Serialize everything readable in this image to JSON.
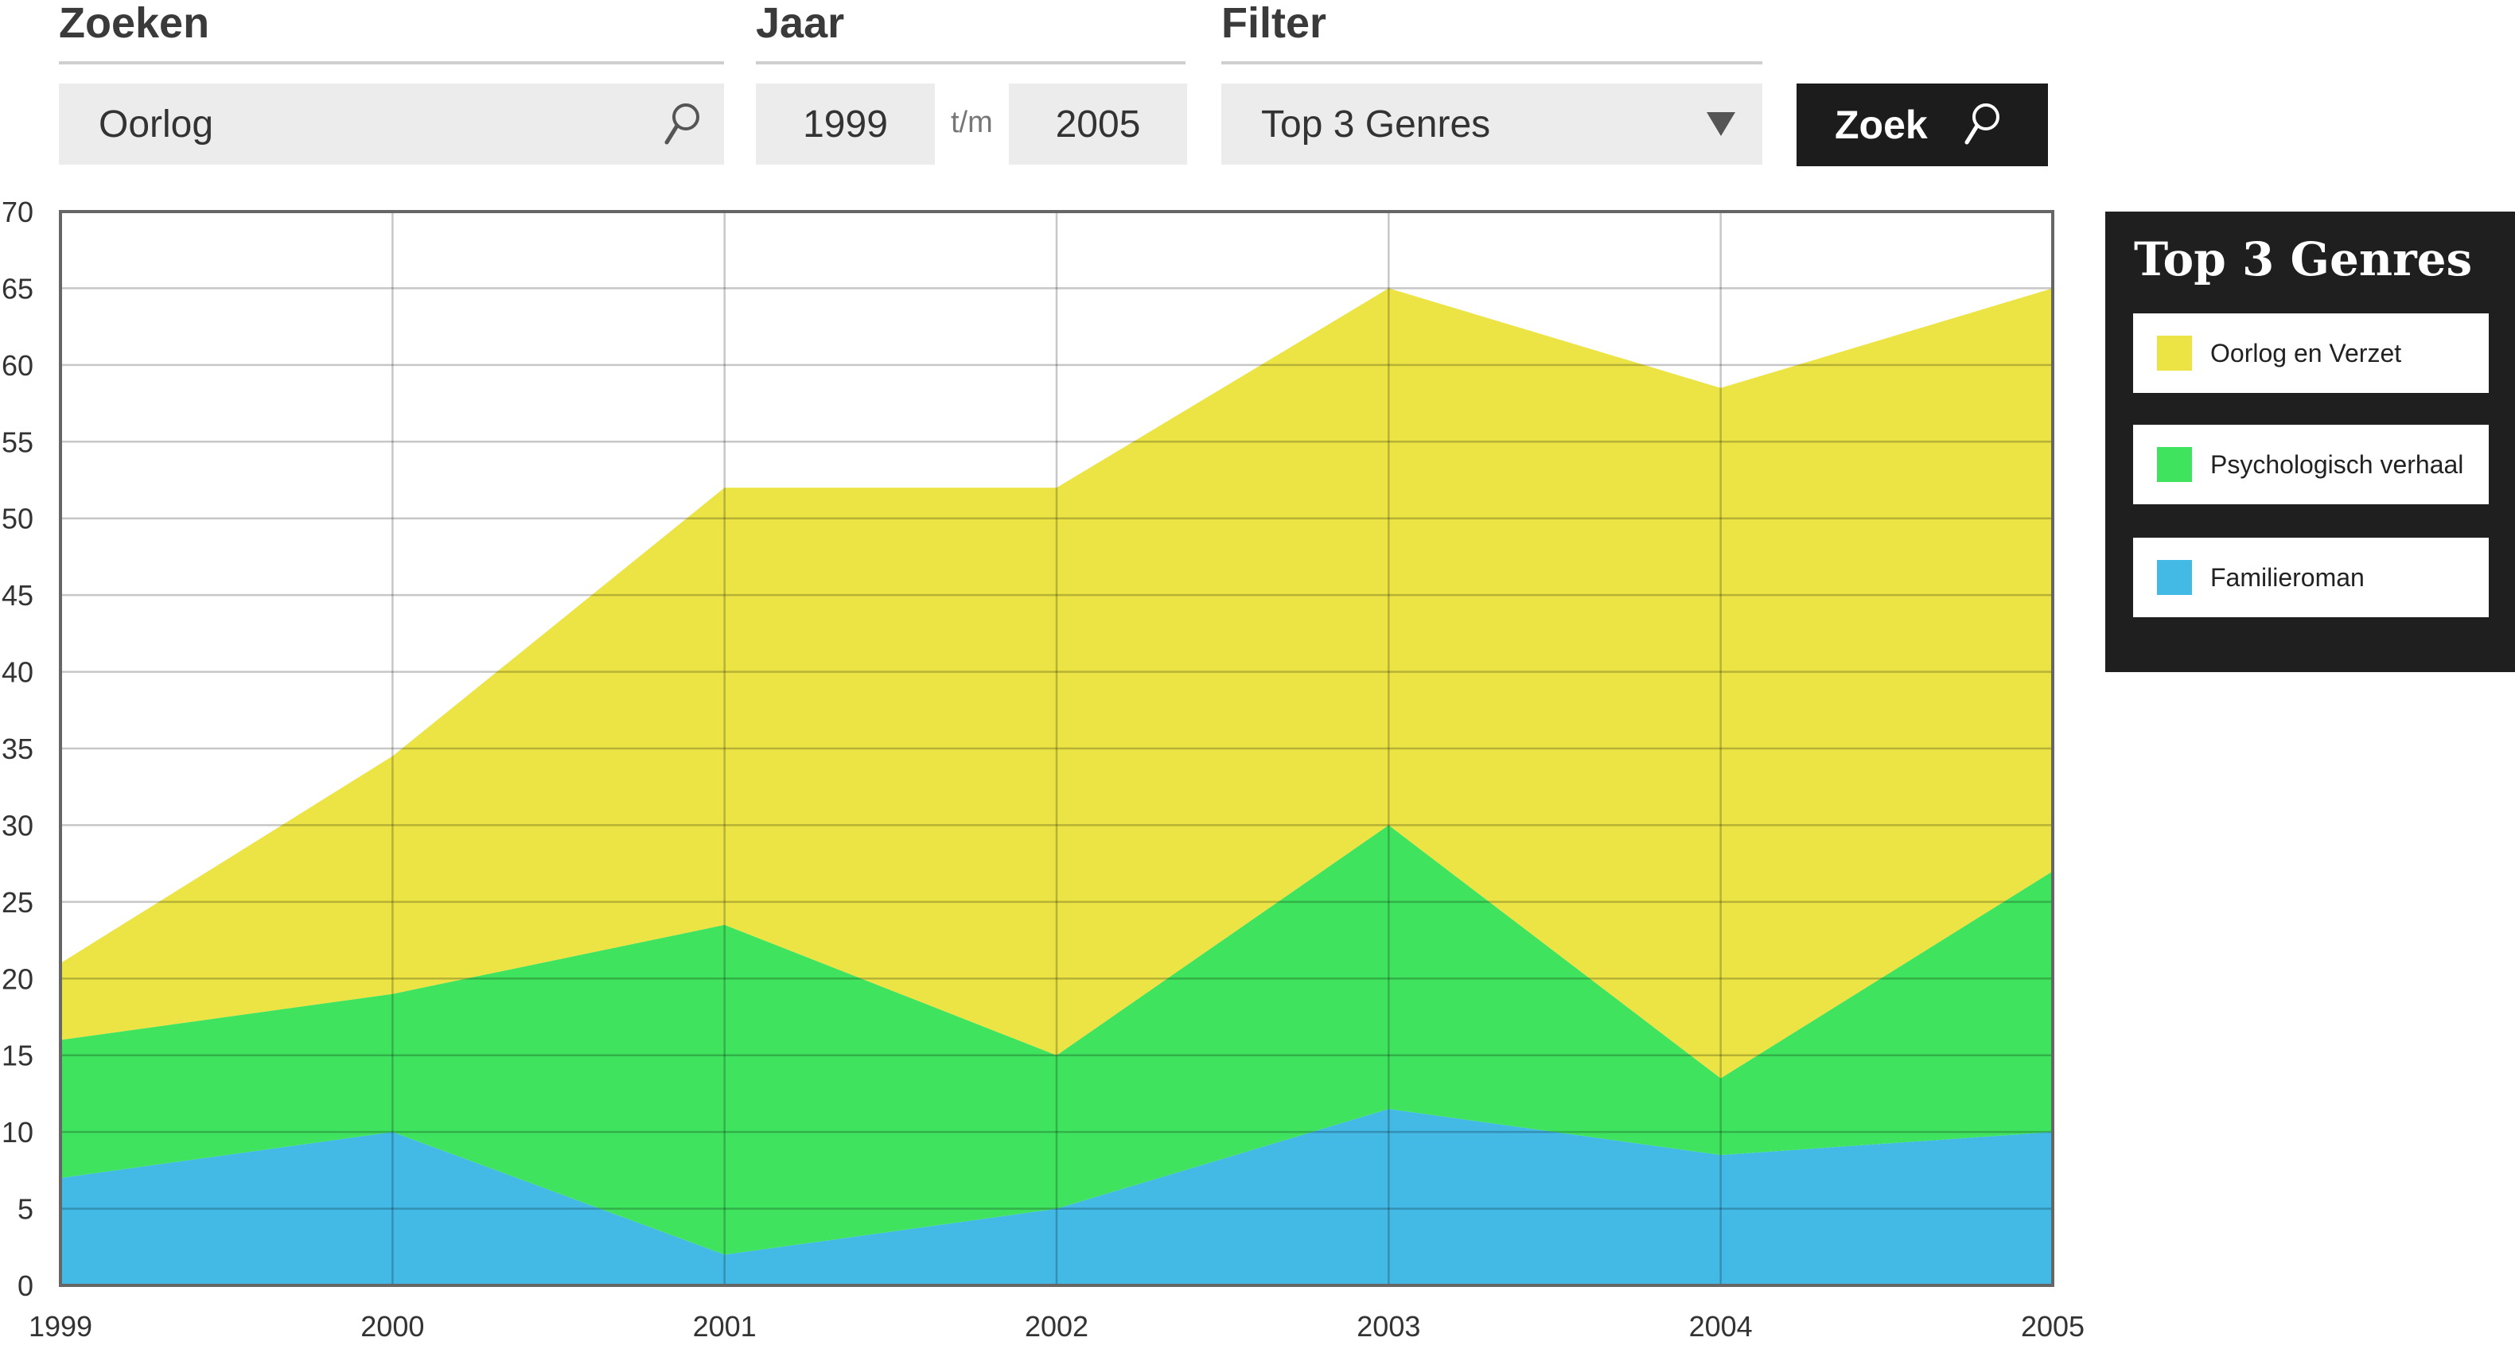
{
  "search": {
    "heading": "Zoeken",
    "value": "Oorlog",
    "icon": "search-icon"
  },
  "year": {
    "heading": "Jaar",
    "from": "1999",
    "separator": "t/m",
    "to": "2005"
  },
  "filter": {
    "heading": "Filter",
    "selected": "Top 3 Genres",
    "icon": "dropdown-triangle-icon"
  },
  "submit": {
    "label": "Zoek",
    "icon": "search-icon"
  },
  "legend": {
    "title": "Top 3 Genres",
    "items": [
      {
        "label": "Oorlog en Verzet",
        "color": "#ebe444"
      },
      {
        "label": "Psychologisch verhaal",
        "color": "#40e35e"
      },
      {
        "label": "Familieroman",
        "color": "#43b9e6"
      }
    ]
  },
  "chart_data": {
    "type": "area",
    "stacked": true,
    "x": [
      "1999",
      "2000",
      "2001",
      "2002",
      "2003",
      "2004",
      "2005"
    ],
    "ylim": [
      0,
      70
    ],
    "yticks": [
      0,
      5,
      10,
      15,
      20,
      25,
      30,
      35,
      40,
      45,
      50,
      55,
      60,
      65,
      70
    ],
    "grid": true,
    "legend_position": "right",
    "series": [
      {
        "name": "Familieroman",
        "color": "#43b9e6",
        "values": [
          7,
          10,
          2,
          5,
          11.5,
          8.5,
          10
        ]
      },
      {
        "name": "Psychologisch verhaal",
        "color": "#40e35e",
        "values": [
          9,
          9,
          21.5,
          10,
          18.5,
          5,
          17
        ]
      },
      {
        "name": "Oorlog en Verzet",
        "color": "#ebe444",
        "values": [
          5,
          15.5,
          28.5,
          37,
          35,
          45,
          38
        ]
      }
    ]
  }
}
